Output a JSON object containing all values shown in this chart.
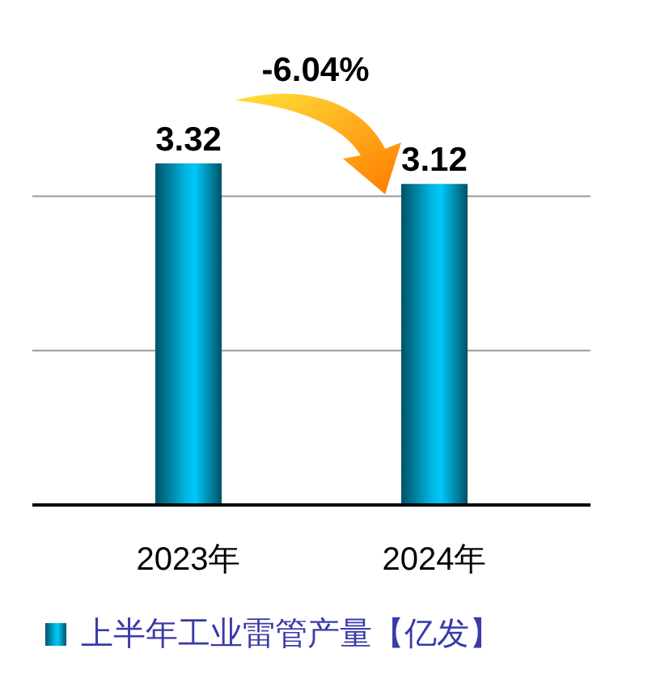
{
  "chart_data": {
    "type": "bar",
    "categories": [
      "2023年",
      "2024年"
    ],
    "series": [
      {
        "name": "上半年工业雷管产量【亿发】",
        "color": "#00b4e0",
        "values": [
          3.32,
          3.12
        ]
      }
    ],
    "ref_lines": [
      {
        "axis": "y",
        "value": 1.5,
        "color": "#999999"
      },
      {
        "axis": "y",
        "value": 3,
        "color": "#999999"
      }
    ],
    "tick_labels": "x",
    "data_labels": true,
    "legend": "bottom",
    "annotations": [
      "-6.04%"
    ]
  }
}
